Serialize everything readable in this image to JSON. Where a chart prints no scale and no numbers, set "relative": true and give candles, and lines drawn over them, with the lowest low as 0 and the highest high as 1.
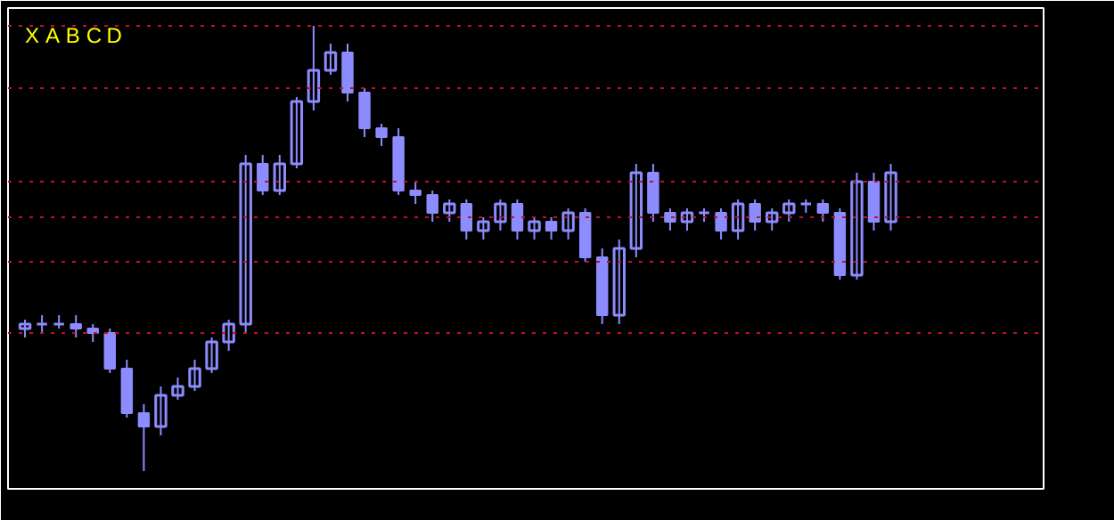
{
  "chart_data": {
    "type": "candlestick",
    "relative": true,
    "grid": false,
    "color": "#8c8cff",
    "categories": [
      null,
      null,
      null,
      null,
      null,
      null,
      null,
      null,
      null,
      null,
      null,
      null,
      null,
      null,
      null,
      null,
      null,
      null,
      null,
      null,
      null,
      null,
      null,
      null,
      null,
      null,
      null,
      null,
      null,
      null,
      null,
      null,
      null,
      null,
      null,
      null,
      null,
      null,
      null,
      null,
      null,
      null,
      null,
      null,
      null,
      null,
      null,
      null,
      null,
      null,
      null,
      null
    ],
    "ohlc": [
      [
        0.32,
        0.34,
        0.3,
        0.33
      ],
      [
        0.33,
        0.35,
        0.31,
        0.33
      ],
      [
        0.33,
        0.35,
        0.32,
        0.33
      ],
      [
        0.33,
        0.35,
        0.3,
        0.32
      ],
      [
        0.32,
        0.33,
        0.29,
        0.31
      ],
      [
        0.31,
        0.32,
        0.22,
        0.23
      ],
      [
        0.23,
        0.25,
        0.12,
        0.13
      ],
      [
        0.13,
        0.15,
        0,
        0.1
      ],
      [
        0.1,
        0.19,
        0.08,
        0.17
      ],
      [
        0.17,
        0.21,
        0.16,
        0.19
      ],
      [
        0.19,
        0.25,
        0.18,
        0.23
      ],
      [
        0.23,
        0.3,
        0.22,
        0.29
      ],
      [
        0.29,
        0.34,
        0.27,
        0.33
      ],
      [
        0.33,
        0.71,
        0.31,
        0.69
      ],
      [
        0.69,
        0.71,
        0.62,
        0.63
      ],
      [
        0.63,
        0.71,
        0.62,
        0.69
      ],
      [
        0.69,
        0.84,
        0.68,
        0.83
      ],
      [
        0.83,
        1,
        0.81,
        0.9
      ],
      [
        0.9,
        0.96,
        0.89,
        0.94
      ],
      [
        0.94,
        0.96,
        0.83,
        0.85
      ],
      [
        0.85,
        0.86,
        0.75,
        0.77
      ],
      [
        0.77,
        0.78,
        0.73,
        0.75
      ],
      [
        0.75,
        0.77,
        0.62,
        0.63
      ],
      [
        0.63,
        0.65,
        0.6,
        0.62
      ],
      [
        0.62,
        0.63,
        0.56,
        0.58
      ],
      [
        0.58,
        0.61,
        0.56,
        0.6
      ],
      [
        0.6,
        0.61,
        0.52,
        0.54
      ],
      [
        0.54,
        0.57,
        0.52,
        0.56
      ],
      [
        0.56,
        0.61,
        0.54,
        0.6
      ],
      [
        0.6,
        0.61,
        0.52,
        0.54
      ],
      [
        0.54,
        0.57,
        0.52,
        0.56
      ],
      [
        0.56,
        0.57,
        0.52,
        0.54
      ],
      [
        0.54,
        0.59,
        0.52,
        0.58
      ],
      [
        0.58,
        0.59,
        0.47,
        0.48
      ],
      [
        0.48,
        0.5,
        0.33,
        0.35
      ],
      [
        0.35,
        0.52,
        0.33,
        0.5
      ],
      [
        0.5,
        0.69,
        0.48,
        0.67
      ],
      [
        0.67,
        0.69,
        0.56,
        0.58
      ],
      [
        0.58,
        0.59,
        0.54,
        0.56
      ],
      [
        0.56,
        0.59,
        0.54,
        0.58
      ],
      [
        0.58,
        0.59,
        0.56,
        0.58
      ],
      [
        0.58,
        0.59,
        0.52,
        0.54
      ],
      [
        0.54,
        0.61,
        0.52,
        0.6
      ],
      [
        0.6,
        0.61,
        0.54,
        0.56
      ],
      [
        0.56,
        0.59,
        0.54,
        0.58
      ],
      [
        0.58,
        0.61,
        0.56,
        0.6
      ],
      [
        0.6,
        0.61,
        0.58,
        0.6
      ],
      [
        0.6,
        0.61,
        0.56,
        0.58
      ],
      [
        0.58,
        0.59,
        0.43,
        0.44
      ],
      [
        0.44,
        0.67,
        0.43,
        0.65
      ],
      [
        0.65,
        0.67,
        0.54,
        0.56
      ],
      [
        0.56,
        0.69,
        0.54,
        0.67
      ]
    ],
    "ref_lines": [
      {
        "axis": "y",
        "value": 1.0,
        "color": "#c0102a",
        "line_style": "dotted"
      },
      {
        "axis": "y",
        "value": 0.86,
        "color": "#c0102a",
        "line_style": "dotted"
      },
      {
        "axis": "y",
        "value": 0.65,
        "color": "#c0102a",
        "line_style": "dotted"
      },
      {
        "axis": "y",
        "value": 0.57,
        "color": "#c0102a",
        "line_style": "dotted"
      },
      {
        "axis": "y",
        "value": 0.47,
        "color": "#c0102a",
        "line_style": "dotted"
      },
      {
        "axis": "y",
        "value": 0.31,
        "color": "#c0102a",
        "line_style": "dotted"
      }
    ],
    "annotations": [
      "X",
      "A",
      "B",
      "C",
      "D"
    ]
  }
}
